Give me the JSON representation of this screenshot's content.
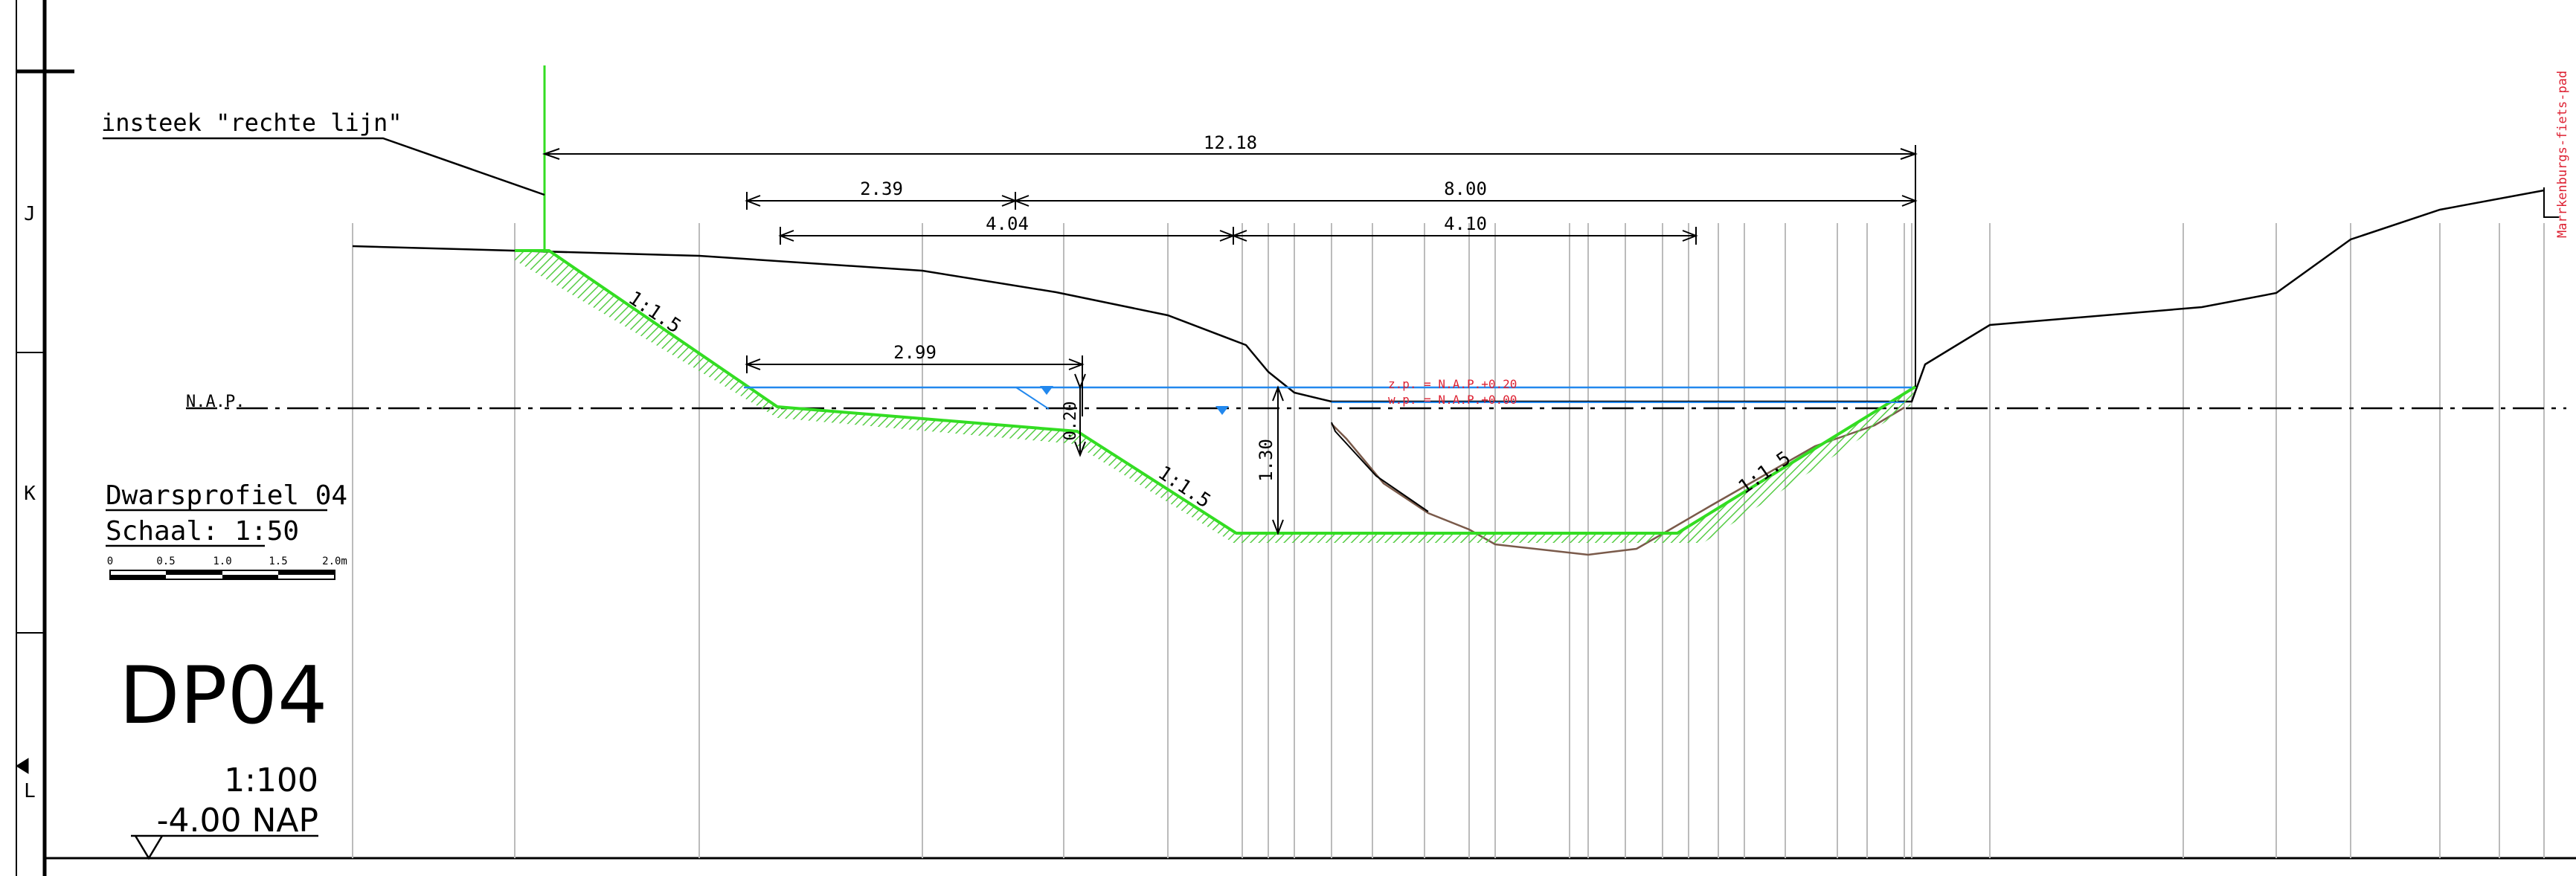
{
  "frame": {
    "zones": [
      "J",
      "K",
      "L"
    ]
  },
  "annotation": {
    "insteek": "insteek \"rechte lijn\""
  },
  "nap_label": "N.A.P.",
  "title_block": {
    "profile_name": "Dwarsprofiel 04",
    "scale_text": "Schaal: 1:50",
    "scale_bar_labels": [
      "0",
      "0.5",
      "1.0",
      "1.5",
      "2.0m"
    ],
    "code": "DP04",
    "ratio": "1:100",
    "datum_level": "-4.00 NAP"
  },
  "dimensions": {
    "d_12_18": "12.18",
    "d_2_39": "2.39",
    "d_8_00": "8.00",
    "d_4_04": "4.04",
    "d_4_10": "4.10",
    "d_2_99": "2.99",
    "d_0_20": "0.20",
    "d_1_30": "1.30"
  },
  "slopes": {
    "left_upper": "1:1.5",
    "left_lower": "1:1.5",
    "right": "1:1.5"
  },
  "water_levels": {
    "zp": "z.p.  = N.A.P.+0.20",
    "wp": "w.p.  = N.A.P.+0.00"
  },
  "side_label": "Marrkenburgs-fiets-pad",
  "colors": {
    "line": "#000000",
    "grid": "#bbbbbb",
    "design_profile": "#33dd22",
    "hatch": "#55cc44",
    "water": "#2288ee",
    "water_text": "#dd2233",
    "existing_bottom": "#7a5a4a"
  }
}
